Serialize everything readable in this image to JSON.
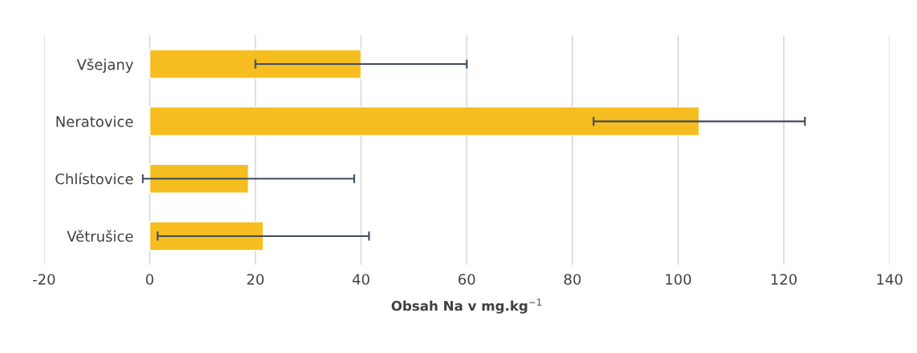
{
  "chart_data": {
    "type": "bar",
    "orientation": "horizontal",
    "xlabel": "Obsah Na v mg.kg$^{−1}$",
    "categories": [
      "Všejany",
      "Neratovice",
      "Chlístovice",
      "Větrušice"
    ],
    "values": [
      40,
      104,
      18.7,
      21.5
    ],
    "errors": [
      20,
      20,
      20,
      20
    ],
    "color": "#f5bd1f",
    "xlim": [
      -20,
      140
    ],
    "xticks": [
      -20,
      0,
      20,
      40,
      60,
      80,
      100,
      120,
      140
    ],
    "grid": "x"
  }
}
